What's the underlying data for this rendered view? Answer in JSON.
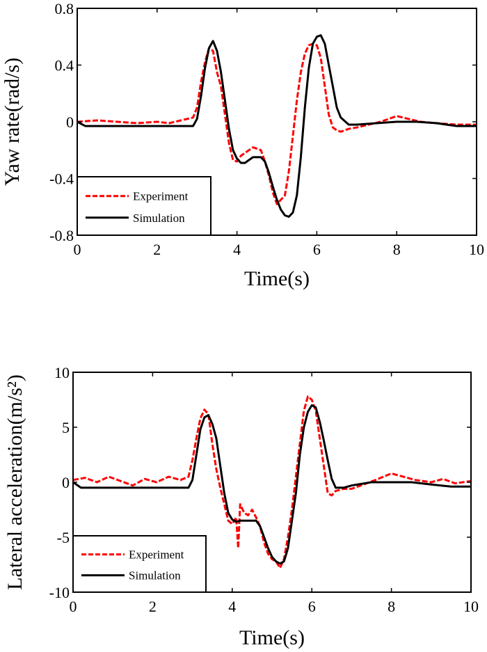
{
  "chart_data": [
    {
      "type": "line",
      "title": "",
      "xlabel": "Time(s)",
      "ylabel": "Yaw rate(rad/s)",
      "xlim": [
        0,
        10
      ],
      "ylim": [
        -0.8,
        0.8
      ],
      "xticks": [
        0,
        2,
        4,
        6,
        8,
        10
      ],
      "xtick_labels": [
        "0",
        "2",
        "4",
        "6",
        "8",
        "10"
      ],
      "yticks": [
        0.8,
        0.4,
        0,
        -0.4,
        -0.8
      ],
      "ytick_labels": [
        "0.8",
        "0.4",
        "0",
        "-0.4",
        "-0.8"
      ],
      "grid": false,
      "legend": {
        "placement": "bottom-left",
        "entries": [
          "Experiment",
          "Simulation"
        ]
      },
      "series": [
        {
          "name": "Experiment",
          "color": "#ff0000",
          "style": "dashed",
          "x": [
            0,
            0.5,
            1.0,
            1.5,
            2.0,
            2.3,
            2.6,
            2.9,
            3.0,
            3.1,
            3.2,
            3.3,
            3.4,
            3.5,
            3.6,
            3.7,
            3.8,
            3.9,
            4.0,
            4.1,
            4.2,
            4.3,
            4.4,
            4.5,
            4.6,
            4.7,
            4.8,
            4.9,
            5.0,
            5.1,
            5.2,
            5.3,
            5.4,
            5.5,
            5.6,
            5.7,
            5.8,
            5.9,
            6.0,
            6.1,
            6.2,
            6.3,
            6.4,
            6.5,
            6.6,
            6.8,
            7.0,
            7.3,
            7.6,
            8.0,
            8.3,
            8.6,
            9.0,
            9.5,
            10.0
          ],
          "y": [
            0.0,
            0.01,
            0.0,
            -0.01,
            0.0,
            -0.01,
            0.01,
            0.03,
            0.1,
            0.28,
            0.42,
            0.52,
            0.5,
            0.35,
            0.25,
            0.05,
            -0.15,
            -0.27,
            -0.28,
            -0.24,
            -0.22,
            -0.2,
            -0.18,
            -0.19,
            -0.2,
            -0.28,
            -0.38,
            -0.5,
            -0.58,
            -0.55,
            -0.52,
            -0.35,
            -0.1,
            0.15,
            0.35,
            0.48,
            0.54,
            0.55,
            0.54,
            0.45,
            0.25,
            0.05,
            -0.04,
            -0.06,
            -0.07,
            -0.05,
            -0.04,
            -0.02,
            0.0,
            0.04,
            0.02,
            0.0,
            -0.01,
            -0.02,
            -0.02
          ]
        },
        {
          "name": "Simulation",
          "color": "#000000",
          "style": "solid",
          "x": [
            0,
            0.2,
            0.5,
            1.0,
            1.5,
            2.0,
            2.5,
            2.9,
            3.0,
            3.1,
            3.2,
            3.3,
            3.4,
            3.5,
            3.6,
            3.7,
            3.8,
            3.9,
            4.0,
            4.1,
            4.2,
            4.3,
            4.4,
            4.5,
            4.6,
            4.7,
            4.8,
            4.9,
            5.0,
            5.1,
            5.2,
            5.3,
            5.4,
            5.5,
            5.6,
            5.7,
            5.8,
            5.9,
            6.0,
            6.1,
            6.2,
            6.3,
            6.4,
            6.5,
            6.6,
            6.8,
            7.0,
            7.5,
            8.0,
            8.5,
            9.0,
            9.5,
            10.0
          ],
          "y": [
            0.0,
            -0.03,
            -0.03,
            -0.03,
            -0.03,
            -0.03,
            -0.03,
            -0.03,
            0.02,
            0.18,
            0.38,
            0.52,
            0.57,
            0.5,
            0.35,
            0.15,
            -0.05,
            -0.2,
            -0.26,
            -0.29,
            -0.29,
            -0.27,
            -0.25,
            -0.25,
            -0.25,
            -0.28,
            -0.36,
            -0.46,
            -0.55,
            -0.62,
            -0.66,
            -0.67,
            -0.64,
            -0.52,
            -0.25,
            0.1,
            0.38,
            0.55,
            0.6,
            0.61,
            0.55,
            0.4,
            0.25,
            0.1,
            0.03,
            -0.02,
            -0.02,
            -0.01,
            0.0,
            0.0,
            -0.01,
            -0.03,
            -0.03
          ]
        }
      ]
    },
    {
      "type": "line",
      "title": "",
      "xlabel": "Time(s)",
      "ylabel": "Lateral acceleration(m/s²)",
      "xlim": [
        0,
        10
      ],
      "ylim": [
        -10,
        10
      ],
      "xticks": [
        0,
        2,
        4,
        6,
        8,
        10
      ],
      "xtick_labels": [
        "0",
        "2",
        "4",
        "6",
        "8",
        "10"
      ],
      "yticks": [
        10,
        5,
        0,
        -5,
        -10
      ],
      "ytick_labels": [
        "10",
        "5",
        "0",
        "-5",
        "-10"
      ],
      "grid": false,
      "legend": {
        "placement": "bottom-left",
        "entries": [
          "Experiment",
          "Simulation"
        ]
      },
      "series": [
        {
          "name": "Experiment",
          "color": "#ff0000",
          "style": "dashed",
          "x": [
            0,
            0.3,
            0.6,
            0.9,
            1.2,
            1.5,
            1.8,
            2.1,
            2.4,
            2.7,
            2.9,
            3.0,
            3.1,
            3.2,
            3.3,
            3.4,
            3.5,
            3.6,
            3.7,
            3.8,
            3.9,
            4.0,
            4.1,
            4.15,
            4.2,
            4.3,
            4.4,
            4.5,
            4.6,
            4.7,
            4.8,
            4.9,
            5.0,
            5.1,
            5.2,
            5.3,
            5.4,
            5.5,
            5.6,
            5.7,
            5.8,
            5.9,
            6.0,
            6.1,
            6.2,
            6.3,
            6.4,
            6.5,
            6.6,
            6.8,
            7.0,
            7.3,
            7.6,
            8.0,
            8.3,
            8.6,
            9.0,
            9.3,
            9.6,
            10.0
          ],
          "y": [
            0.2,
            0.4,
            0.0,
            0.5,
            0.1,
            -0.3,
            0.3,
            0.0,
            0.5,
            0.2,
            0.5,
            2.0,
            4.0,
            5.8,
            6.6,
            6.2,
            3.5,
            1.2,
            -0.5,
            -2.0,
            -3.5,
            -3.8,
            -3.2,
            -6.0,
            -2.0,
            -2.8,
            -3.0,
            -2.5,
            -3.2,
            -4.0,
            -5.5,
            -6.5,
            -7.0,
            -7.2,
            -7.8,
            -7.0,
            -5.0,
            -2.5,
            0.5,
            3.5,
            6.5,
            7.8,
            7.5,
            6.5,
            4.0,
            1.5,
            -1.0,
            -1.2,
            -0.8,
            -0.6,
            -0.6,
            -0.2,
            0.2,
            0.8,
            0.5,
            0.2,
            0.0,
            0.3,
            -0.1,
            0.1
          ]
        },
        {
          "name": "Simulation",
          "color": "#000000",
          "style": "solid",
          "x": [
            0,
            0.2,
            0.5,
            1.0,
            1.5,
            2.0,
            2.5,
            2.9,
            3.0,
            3.1,
            3.2,
            3.3,
            3.4,
            3.5,
            3.6,
            3.7,
            3.8,
            3.9,
            4.0,
            4.1,
            4.2,
            4.3,
            4.4,
            4.5,
            4.6,
            4.7,
            4.8,
            4.9,
            5.0,
            5.1,
            5.2,
            5.3,
            5.4,
            5.5,
            5.6,
            5.7,
            5.8,
            5.9,
            6.0,
            6.1,
            6.2,
            6.3,
            6.4,
            6.5,
            6.6,
            6.8,
            7.0,
            7.5,
            8.0,
            8.5,
            9.0,
            9.5,
            10.0
          ],
          "y": [
            0.0,
            -0.5,
            -0.5,
            -0.5,
            -0.5,
            -0.5,
            -0.5,
            -0.5,
            0.2,
            2.5,
            4.8,
            5.9,
            6.1,
            5.3,
            4.0,
            1.5,
            -1.0,
            -2.8,
            -3.4,
            -3.6,
            -3.5,
            -3.5,
            -3.5,
            -3.5,
            -3.5,
            -4.0,
            -5.0,
            -6.0,
            -6.8,
            -7.2,
            -7.4,
            -7.2,
            -6.0,
            -3.5,
            -1.0,
            2.5,
            5.0,
            6.4,
            7.0,
            6.8,
            5.5,
            3.8,
            2.0,
            0.3,
            -0.5,
            -0.5,
            -0.3,
            0.0,
            0.0,
            0.0,
            -0.2,
            -0.4,
            -0.4
          ]
        }
      ]
    }
  ]
}
